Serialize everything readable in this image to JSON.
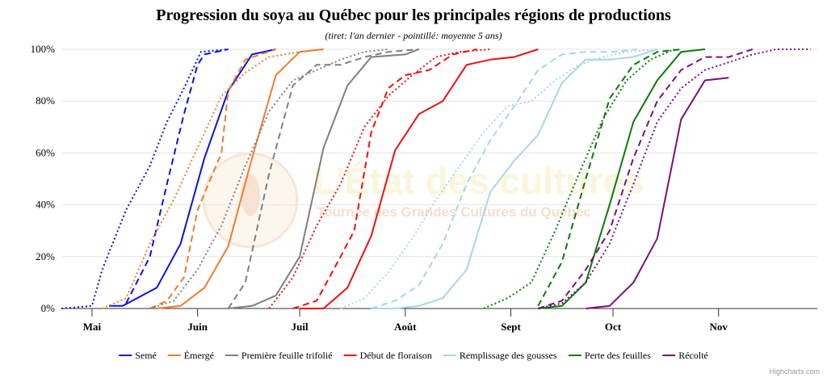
{
  "chart_data": {
    "type": "line",
    "title": "Progression du soya au Québec pour les principales régions de productions",
    "subtitle": "(tiret: l'an dernier - pointillé: moyenne 5 ans)",
    "x_axis": {
      "range": [
        "2024-04-22",
        "2024-11-30"
      ],
      "ticks": [
        {
          "date": "2024-05-01",
          "label": "Mai"
        },
        {
          "date": "2024-06-01",
          "label": "Juin"
        },
        {
          "date": "2024-07-01",
          "label": "Juil"
        },
        {
          "date": "2024-08-01",
          "label": "Août"
        },
        {
          "date": "2024-09-01",
          "label": "Sept"
        },
        {
          "date": "2024-10-01",
          "label": "Oct"
        },
        {
          "date": "2024-11-01",
          "label": "Nov"
        }
      ]
    },
    "y_axis": {
      "range": [
        0,
        100
      ],
      "ticks": [
        {
          "value": 0,
          "label": "0%"
        },
        {
          "value": 20,
          "label": "20%"
        },
        {
          "value": 40,
          "label": "40%"
        },
        {
          "value": 60,
          "label": "60%"
        },
        {
          "value": 80,
          "label": "80%"
        },
        {
          "value": 100,
          "label": "100%"
        }
      ]
    },
    "grid": true,
    "legend_position": "bottom",
    "dash_styles": {
      "current": "solid",
      "last_year": "dashed",
      "five_year_average": "dotted"
    },
    "series": [
      {
        "name": "Semé",
        "color": "#0a14d6",
        "current": [
          [
            "2024-05-06",
            1
          ],
          [
            "2024-05-10",
            1
          ],
          [
            "2024-05-20",
            8
          ],
          [
            "2024-05-27",
            25
          ],
          [
            "2024-06-03",
            58
          ],
          [
            "2024-06-10",
            84
          ],
          [
            "2024-06-17",
            98
          ],
          [
            "2024-06-24",
            100
          ]
        ],
        "last_year": [
          [
            "2024-05-11",
            2
          ],
          [
            "2024-05-18",
            20
          ],
          [
            "2024-05-23",
            48
          ],
          [
            "2024-05-28",
            75
          ],
          [
            "2024-06-01",
            94
          ],
          [
            "2024-06-03",
            98
          ],
          [
            "2024-06-10",
            100
          ]
        ],
        "five_year_average": [
          [
            "2024-04-22",
            0
          ],
          [
            "2024-05-01",
            1
          ],
          [
            "2024-05-04",
            15
          ],
          [
            "2024-05-11",
            38
          ],
          [
            "2024-05-18",
            55
          ],
          [
            "2024-05-23",
            72
          ],
          [
            "2024-05-28",
            85
          ],
          [
            "2024-06-02",
            99
          ],
          [
            "2024-06-10",
            100
          ]
        ]
      },
      {
        "name": "Émergé",
        "color": "#ed7d31",
        "current": [
          [
            "2024-05-20",
            0
          ],
          [
            "2024-05-27",
            1
          ],
          [
            "2024-06-03",
            8
          ],
          [
            "2024-06-10",
            24
          ],
          [
            "2024-06-17",
            58
          ],
          [
            "2024-06-24",
            90
          ],
          [
            "2024-07-01",
            99
          ],
          [
            "2024-07-08",
            100
          ]
        ],
        "last_year": [
          [
            "2024-05-18",
            0
          ],
          [
            "2024-05-23",
            3
          ],
          [
            "2024-05-28",
            12
          ],
          [
            "2024-06-01",
            38
          ],
          [
            "2024-06-08",
            60
          ],
          [
            "2024-06-10",
            84
          ],
          [
            "2024-06-15",
            96
          ],
          [
            "2024-06-24",
            100
          ]
        ],
        "five_year_average": [
          [
            "2024-05-04",
            0
          ],
          [
            "2024-05-11",
            4
          ],
          [
            "2024-05-18",
            25
          ],
          [
            "2024-05-25",
            42
          ],
          [
            "2024-06-01",
            62
          ],
          [
            "2024-06-08",
            82
          ],
          [
            "2024-06-15",
            91
          ],
          [
            "2024-06-22",
            97
          ],
          [
            "2024-07-01",
            99
          ],
          [
            "2024-07-08",
            100
          ]
        ]
      },
      {
        "name": "Première feuille trifolié",
        "color": "#7f7f7f",
        "current": [
          [
            "2024-06-10",
            0
          ],
          [
            "2024-06-17",
            1
          ],
          [
            "2024-06-24",
            5
          ],
          [
            "2024-07-01",
            20
          ],
          [
            "2024-07-08",
            62
          ],
          [
            "2024-07-15",
            86
          ],
          [
            "2024-07-22",
            97
          ],
          [
            "2024-08-01",
            98
          ],
          [
            "2024-08-05",
            100
          ]
        ],
        "last_year": [
          [
            "2024-06-10",
            0
          ],
          [
            "2024-06-15",
            10
          ],
          [
            "2024-06-22",
            52
          ],
          [
            "2024-06-29",
            86
          ],
          [
            "2024-07-06",
            94
          ],
          [
            "2024-07-13",
            94
          ],
          [
            "2024-07-20",
            97
          ],
          [
            "2024-07-27",
            99
          ],
          [
            "2024-08-05",
            100
          ]
        ],
        "five_year_average": [
          [
            "2024-05-18",
            0
          ],
          [
            "2024-05-25",
            3
          ],
          [
            "2024-06-01",
            15
          ],
          [
            "2024-06-08",
            32
          ],
          [
            "2024-06-15",
            55
          ],
          [
            "2024-06-22",
            76
          ],
          [
            "2024-06-29",
            88
          ],
          [
            "2024-07-06",
            92
          ],
          [
            "2024-07-13",
            96
          ],
          [
            "2024-07-20",
            99
          ],
          [
            "2024-07-27",
            100
          ]
        ]
      },
      {
        "name": "Début de floraison",
        "color": "#ee1111",
        "current": [
          [
            "2024-07-01",
            0
          ],
          [
            "2024-07-08",
            0
          ],
          [
            "2024-07-15",
            8
          ],
          [
            "2024-07-22",
            28
          ],
          [
            "2024-07-29",
            61
          ],
          [
            "2024-08-05",
            75
          ],
          [
            "2024-08-12",
            80
          ],
          [
            "2024-08-19",
            94
          ],
          [
            "2024-08-26",
            96
          ],
          [
            "2024-09-02",
            97
          ],
          [
            "2024-09-09",
            100
          ]
        ],
        "last_year": [
          [
            "2024-06-29",
            0
          ],
          [
            "2024-07-06",
            3
          ],
          [
            "2024-07-13",
            20
          ],
          [
            "2024-07-17",
            30
          ],
          [
            "2024-07-22",
            68
          ],
          [
            "2024-07-27",
            85
          ],
          [
            "2024-08-01",
            90
          ],
          [
            "2024-08-08",
            92
          ],
          [
            "2024-08-15",
            98
          ],
          [
            "2024-08-22",
            100
          ]
        ],
        "five_year_average": [
          [
            "2024-06-22",
            0
          ],
          [
            "2024-06-29",
            12
          ],
          [
            "2024-07-06",
            32
          ],
          [
            "2024-07-13",
            48
          ],
          [
            "2024-07-20",
            70
          ],
          [
            "2024-07-27",
            82
          ],
          [
            "2024-08-03",
            90
          ],
          [
            "2024-08-10",
            97
          ],
          [
            "2024-08-17",
            99
          ],
          [
            "2024-08-26",
            100
          ]
        ]
      },
      {
        "name": "Remplissage des gousses",
        "color": "#a8d6e6",
        "current": [
          [
            "2024-07-22",
            0
          ],
          [
            "2024-07-29",
            0
          ],
          [
            "2024-08-05",
            1
          ],
          [
            "2024-08-12",
            4
          ],
          [
            "2024-08-19",
            15
          ],
          [
            "2024-08-26",
            45
          ],
          [
            "2024-09-02",
            57
          ],
          [
            "2024-09-09",
            67
          ],
          [
            "2024-09-16",
            87
          ],
          [
            "2024-09-23",
            96
          ],
          [
            "2024-09-30",
            96
          ],
          [
            "2024-10-07",
            97
          ],
          [
            "2024-10-14",
            100
          ]
        ],
        "last_year": [
          [
            "2024-07-22",
            0
          ],
          [
            "2024-07-29",
            3
          ],
          [
            "2024-08-05",
            9
          ],
          [
            "2024-08-12",
            25
          ],
          [
            "2024-08-19",
            48
          ],
          [
            "2024-08-26",
            65
          ],
          [
            "2024-09-02",
            78
          ],
          [
            "2024-09-09",
            92
          ],
          [
            "2024-09-16",
            98
          ],
          [
            "2024-09-23",
            99
          ],
          [
            "2024-10-01",
            99
          ],
          [
            "2024-10-08",
            100
          ]
        ],
        "five_year_average": [
          [
            "2024-07-13",
            0
          ],
          [
            "2024-07-20",
            4
          ],
          [
            "2024-07-27",
            14
          ],
          [
            "2024-08-03",
            27
          ],
          [
            "2024-08-10",
            42
          ],
          [
            "2024-08-17",
            55
          ],
          [
            "2024-08-24",
            68
          ],
          [
            "2024-08-31",
            78
          ],
          [
            "2024-09-07",
            80
          ],
          [
            "2024-09-14",
            88
          ],
          [
            "2024-09-21",
            94
          ],
          [
            "2024-09-28",
            97
          ],
          [
            "2024-10-05",
            99
          ],
          [
            "2024-10-14",
            100
          ]
        ]
      },
      {
        "name": "Perte des feuilles",
        "color": "#0b7a0b",
        "current": [
          [
            "2024-09-09",
            0
          ],
          [
            "2024-09-16",
            1
          ],
          [
            "2024-09-23",
            10
          ],
          [
            "2024-09-30",
            40
          ],
          [
            "2024-10-07",
            72
          ],
          [
            "2024-10-14",
            88
          ],
          [
            "2024-10-21",
            99
          ],
          [
            "2024-10-28",
            100
          ]
        ],
        "last_year": [
          [
            "2024-09-09",
            1
          ],
          [
            "2024-09-16",
            18
          ],
          [
            "2024-09-23",
            50
          ],
          [
            "2024-09-30",
            81
          ],
          [
            "2024-10-07",
            94
          ],
          [
            "2024-10-14",
            99
          ],
          [
            "2024-10-21",
            100
          ]
        ],
        "five_year_average": [
          [
            "2024-08-24",
            0
          ],
          [
            "2024-08-31",
            4
          ],
          [
            "2024-09-07",
            10
          ],
          [
            "2024-09-14",
            30
          ],
          [
            "2024-09-21",
            52
          ],
          [
            "2024-09-28",
            73
          ],
          [
            "2024-10-05",
            88
          ],
          [
            "2024-10-12",
            96
          ],
          [
            "2024-10-19",
            100
          ]
        ]
      },
      {
        "name": "Récolté",
        "color": "#7a1178",
        "current": [
          [
            "2024-09-23",
            0
          ],
          [
            "2024-09-30",
            1
          ],
          [
            "2024-10-07",
            10
          ],
          [
            "2024-10-14",
            27
          ],
          [
            "2024-10-21",
            73
          ],
          [
            "2024-10-28",
            88
          ],
          [
            "2024-11-04",
            89
          ]
        ],
        "last_year": [
          [
            "2024-09-09",
            0
          ],
          [
            "2024-09-16",
            3
          ],
          [
            "2024-09-23",
            15
          ],
          [
            "2024-09-30",
            30
          ],
          [
            "2024-10-07",
            58
          ],
          [
            "2024-10-14",
            80
          ],
          [
            "2024-10-21",
            92
          ],
          [
            "2024-10-28",
            97
          ],
          [
            "2024-11-04",
            97
          ],
          [
            "2024-11-11",
            100
          ]
        ],
        "five_year_average": [
          [
            "2024-09-09",
            0
          ],
          [
            "2024-09-16",
            2
          ],
          [
            "2024-09-23",
            10
          ],
          [
            "2024-09-30",
            25
          ],
          [
            "2024-10-07",
            48
          ],
          [
            "2024-10-14",
            72
          ],
          [
            "2024-10-21",
            85
          ],
          [
            "2024-10-28",
            92
          ],
          [
            "2024-11-04",
            95
          ],
          [
            "2024-11-11",
            98
          ],
          [
            "2024-11-18",
            100
          ],
          [
            "2024-11-28",
            100
          ]
        ]
      }
    ]
  },
  "watermark": {
    "line1": "L'État des cultures",
    "line2": "Tournée des Grandes Cultures du Québec"
  },
  "credits": "Highcharts.com"
}
